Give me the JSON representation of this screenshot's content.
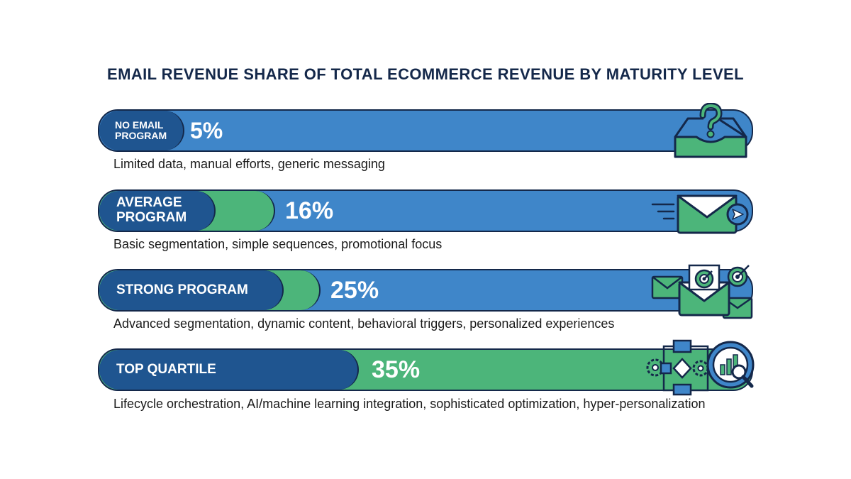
{
  "title": "EMAIL REVENUE SHARE OF TOTAL ECOMMERCE REVENUE BY MATURITY LEVEL",
  "colors": {
    "navy": "#1f5590",
    "bar_blue": "#3f86c9",
    "green": "#4cb57a",
    "outline": "#14284a"
  },
  "chart_data": {
    "type": "bar",
    "orientation": "horizontal",
    "title": "EMAIL REVENUE SHARE OF TOTAL ECOMMERCE REVENUE BY MATURITY LEVEL",
    "categories": [
      "NO EMAIL PROGRAM",
      "AVERAGE PROGRAM",
      "STRONG PROGRAM",
      "TOP QUARTILE"
    ],
    "values": [
      5,
      16,
      25,
      35
    ],
    "value_labels": [
      "5%",
      "16%",
      "25%",
      "35%"
    ],
    "descriptions": [
      "Limited data, manual efforts, generic messaging",
      "Basic segmentation, simple sequences, promotional focus",
      "Advanced segmentation, dynamic content, behavioral triggers, personalized experiences",
      "Lifecycle orchestration, AI/machine learning integration, sophisticated optimization, hyper-personalization"
    ],
    "icons": [
      "inbox-question-icon",
      "send-email-icon",
      "targeted-email-icon",
      "workflow-analytics-icon"
    ],
    "grid": false,
    "legend": "none"
  }
}
